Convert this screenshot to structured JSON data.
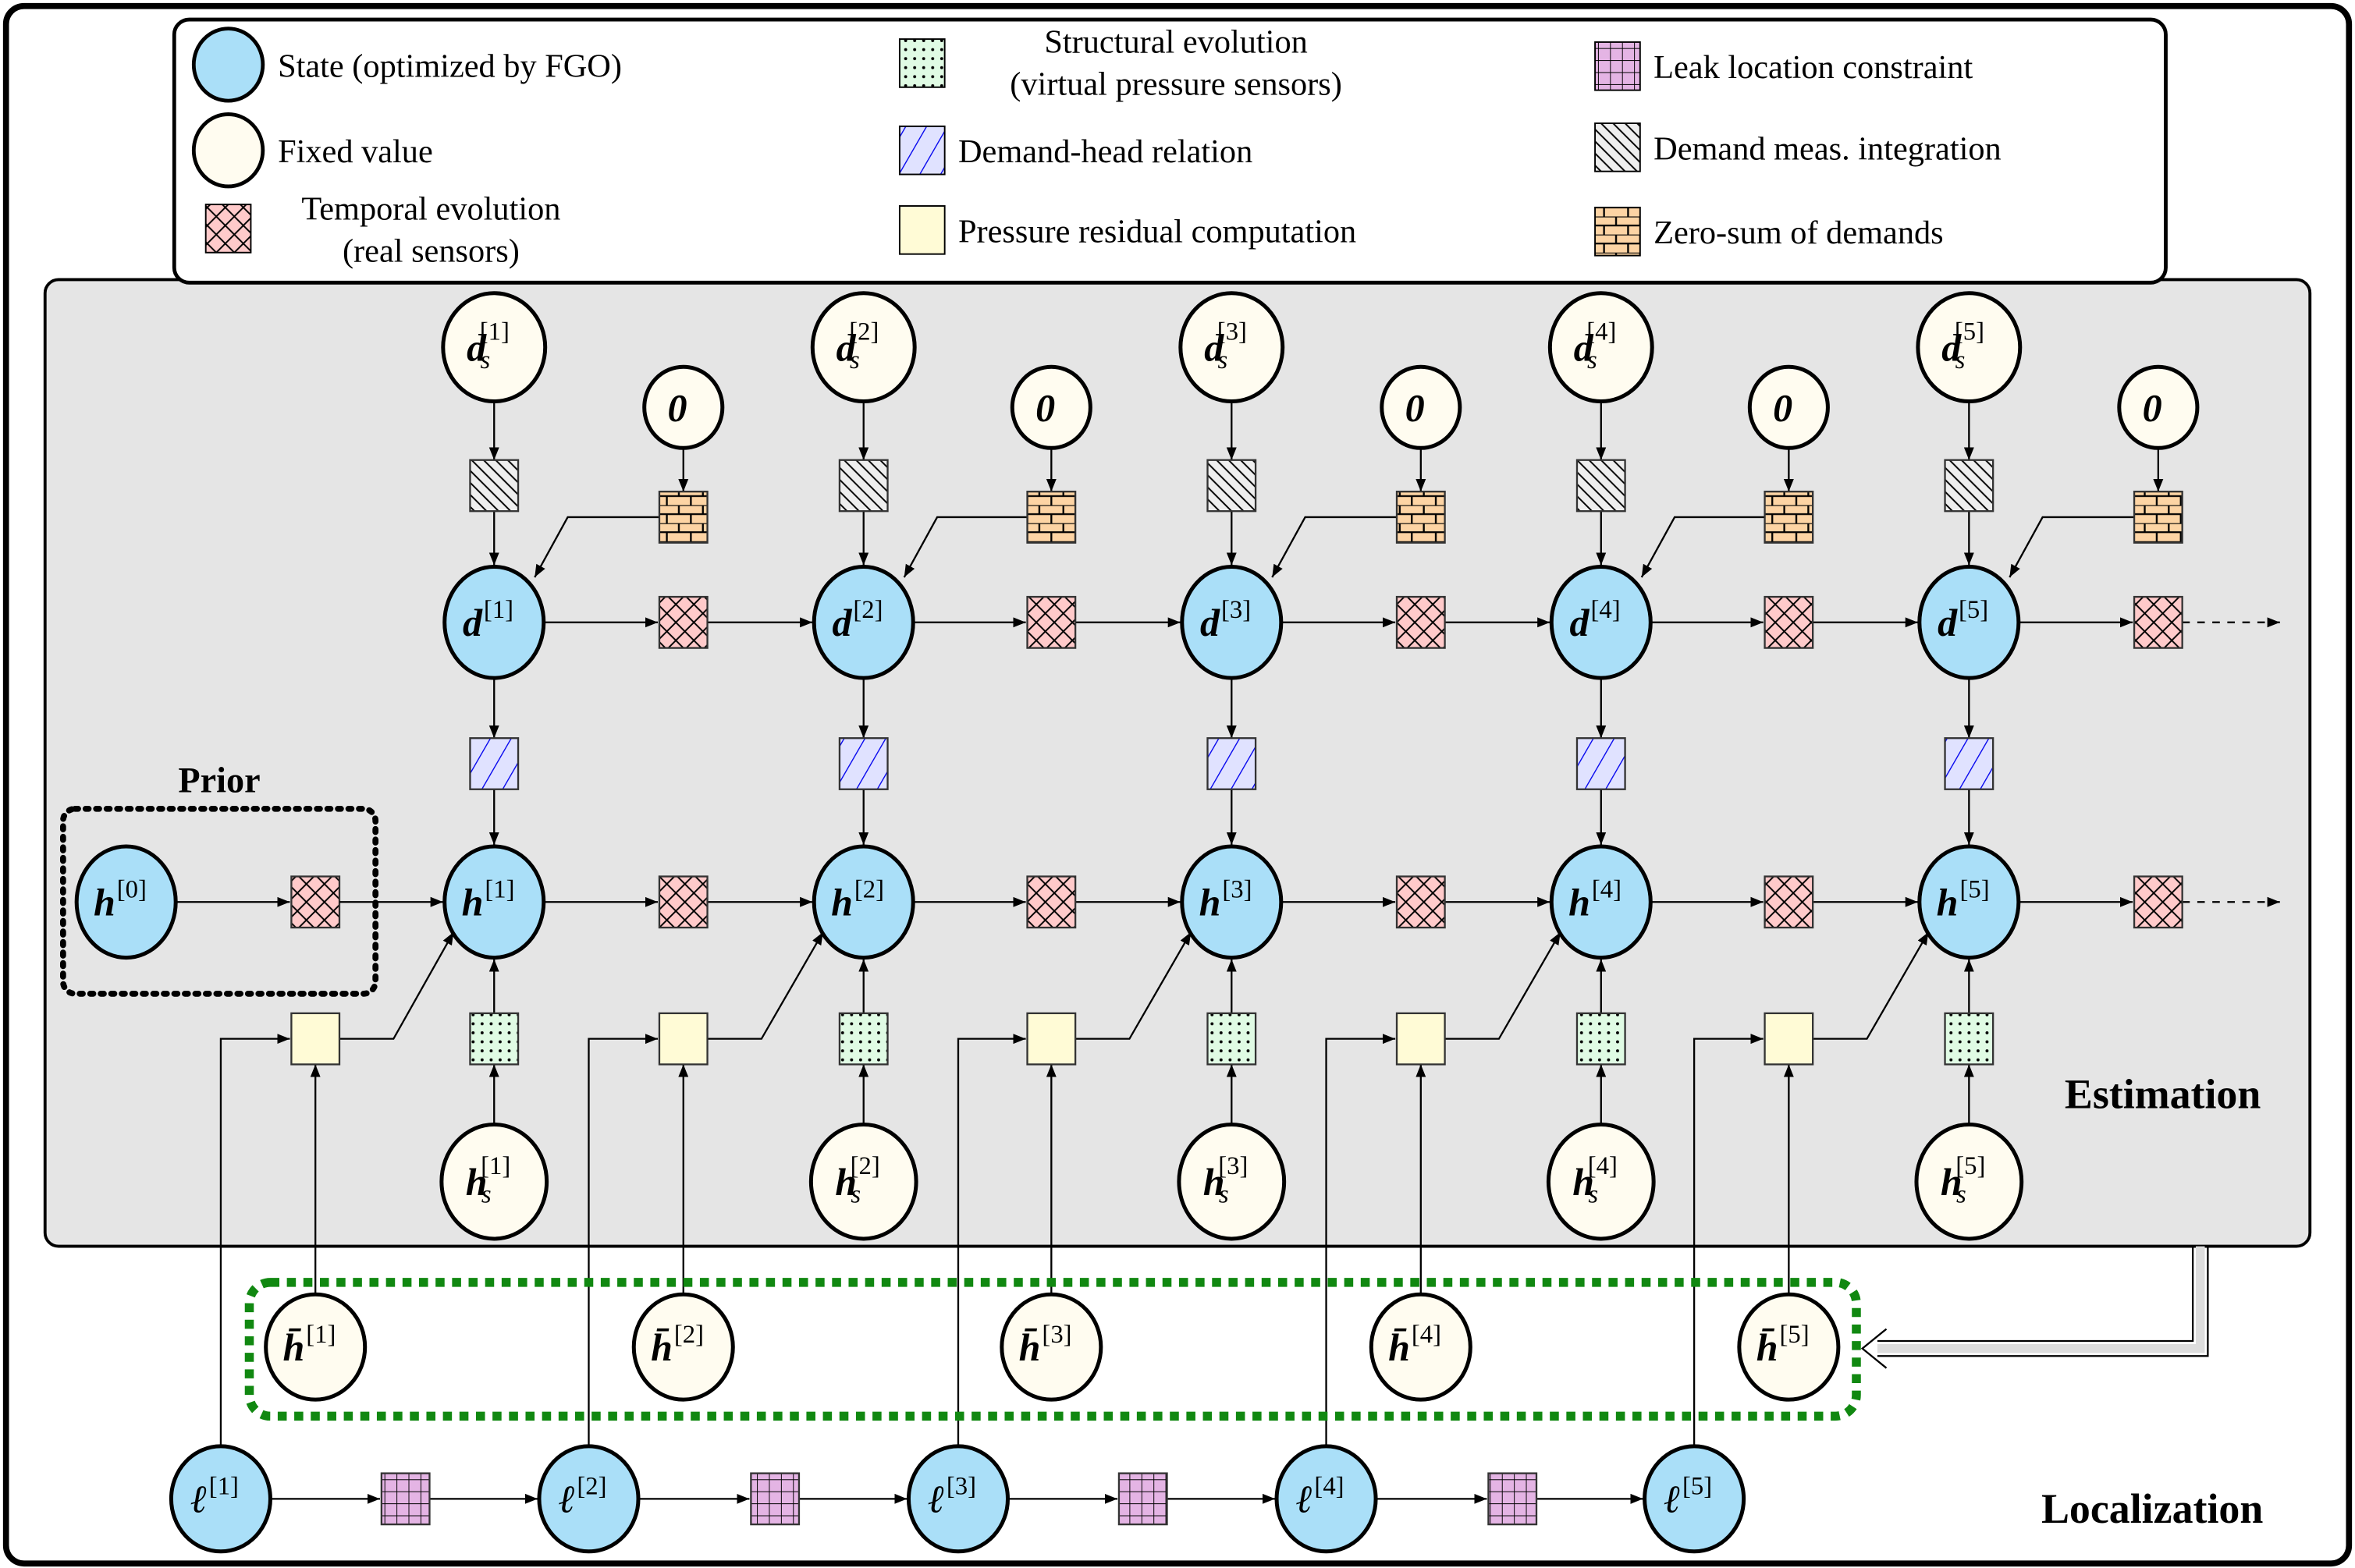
{
  "legend": {
    "items": [
      {
        "icon": "state-circle-icon",
        "lines": [
          "State (optimized by FGO)"
        ],
        "fill": "#aadff8"
      },
      {
        "icon": "fixed-circle-icon",
        "lines": [
          "Fixed value"
        ],
        "fill": "#fffcf0"
      },
      {
        "icon": "temporal-factor-icon",
        "lines": [
          "Temporal evolution",
          "(real sensors)"
        ],
        "fill": "#ffcaca"
      },
      {
        "icon": "structural-factor-icon",
        "lines": [
          "Structural evolution",
          "(virtual pressure sensors)"
        ],
        "fill": "#e0fbe4"
      },
      {
        "icon": "demand-head-factor-icon",
        "lines": [
          "Demand-head relation"
        ],
        "fill": "#e0e2ff"
      },
      {
        "icon": "pressure-residual-factor-icon",
        "lines": [
          "Pressure residual computation"
        ],
        "fill": "#fffbd6"
      },
      {
        "icon": "leak-location-factor-icon",
        "lines": [
          "Leak location constraint"
        ],
        "fill": "#e4b4e4"
      },
      {
        "icon": "demand-meas-factor-icon",
        "lines": [
          "Demand meas. integration"
        ],
        "fill": "#eeeeee"
      },
      {
        "icon": "zero-sum-factor-icon",
        "lines": [
          "Zero-sum of demands"
        ],
        "fill": "#fdd4a4"
      }
    ]
  },
  "sections": {
    "estimation": "Estimation",
    "localization": "Localization",
    "prior": "Prior"
  },
  "steps": [
    "1",
    "2",
    "3",
    "4",
    "5"
  ],
  "prior_step": "0",
  "variables": {
    "demand": "d",
    "head": "h",
    "demand_measured": {
      "base": "d",
      "sub": "s"
    },
    "head_measured": {
      "base": "h",
      "sub": "s"
    },
    "head_nominal": "h̄",
    "leak": "ℓ",
    "zero": "0"
  },
  "colors": {
    "state": "#aadff8",
    "fixed": "#fffcf0",
    "panel": "#e5e5e5",
    "localization_group": "#118811"
  }
}
